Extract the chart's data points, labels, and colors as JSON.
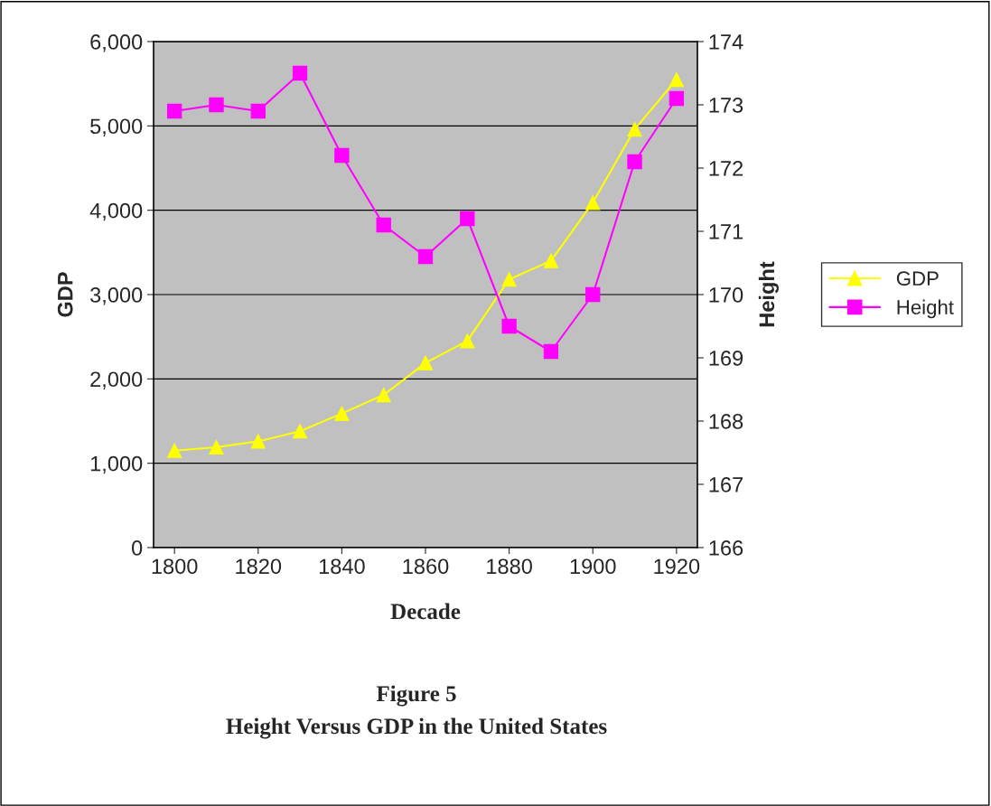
{
  "chart_data": {
    "type": "line",
    "title": "Figure 5",
    "subtitle": "Height Versus GDP in the United States",
    "xlabel": "Decade",
    "ylabel": "GDP",
    "y2label": "Height",
    "x": [
      1800,
      1810,
      1820,
      1830,
      1840,
      1850,
      1860,
      1870,
      1880,
      1890,
      1900,
      1910,
      1920
    ],
    "series": [
      {
        "name": "GDP",
        "color": "#ffff00",
        "marker": "triangle",
        "values": [
          1150,
          1190,
          1260,
          1380,
          1590,
          1810,
          2190,
          2450,
          3180,
          3400,
          4090,
          4960,
          5550
        ]
      },
      {
        "name": "Height",
        "color": "#ff00ff",
        "marker": "square",
        "axis": "y2",
        "values": [
          172.9,
          173.0,
          172.9,
          173.5,
          172.2,
          171.1,
          170.6,
          171.2,
          169.5,
          169.1,
          170.0,
          172.1,
          173.1
        ]
      }
    ],
    "xlim": [
      1795,
      1925
    ],
    "xticks": [
      1800,
      1820,
      1840,
      1860,
      1880,
      1900,
      1920
    ],
    "ylim": [
      0,
      6000
    ],
    "yticks": [
      0,
      {
        "value": 1000,
        "label": "1,000"
      },
      {
        "value": 2000,
        "label": "2,000"
      },
      {
        "value": 3000,
        "label": "3,000"
      },
      {
        "value": 4000,
        "label": "4,000"
      },
      {
        "value": 5000,
        "label": "5,000"
      },
      {
        "value": 6000,
        "label": "6,000"
      }
    ],
    "y2lim": [
      166,
      174
    ],
    "y2ticks": [
      166,
      167,
      168,
      169,
      170,
      171,
      172,
      173,
      174
    ],
    "grid": "y",
    "legend": "right"
  }
}
